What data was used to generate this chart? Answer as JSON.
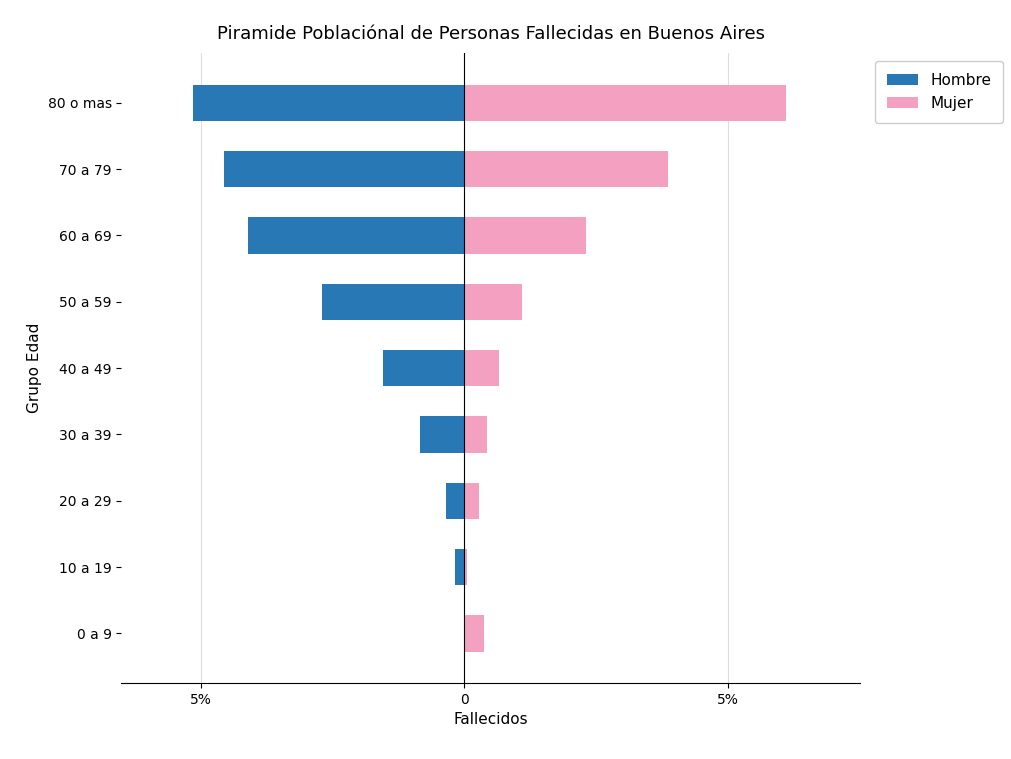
{
  "title": "Piramide Poblaciónal de Personas Fallecidas en Buenos Aires",
  "xlabel": "Fallecidos",
  "ylabel": "Grupo Edad",
  "age_groups": [
    "0 a 9",
    "10 a 19",
    "20 a 29",
    "30 a 39",
    "40 a 49",
    "50 a 59",
    "60 a 69",
    "70 a 79",
    "80 o mas"
  ],
  "hombre": [
    0.0,
    -0.18,
    -0.35,
    -0.85,
    -1.55,
    -2.7,
    -4.1,
    -4.55,
    -5.15
  ],
  "mujer": [
    0.38,
    0.04,
    0.28,
    0.42,
    0.65,
    1.1,
    2.3,
    3.85,
    6.1
  ],
  "hombre_color": "#2878b5",
  "mujer_color": "#f4a0c0",
  "xlim": [
    -6.5,
    7.5
  ],
  "xtick_positions": [
    -5,
    0,
    5
  ],
  "xtick_labels": [
    "5%",
    "0",
    "5%"
  ],
  "background_color": "#ffffff",
  "legend_hombre": "Hombre",
  "legend_mujer": "Mujer",
  "title_fontsize": 13,
  "label_fontsize": 11,
  "tick_fontsize": 10,
  "bar_height": 0.55
}
